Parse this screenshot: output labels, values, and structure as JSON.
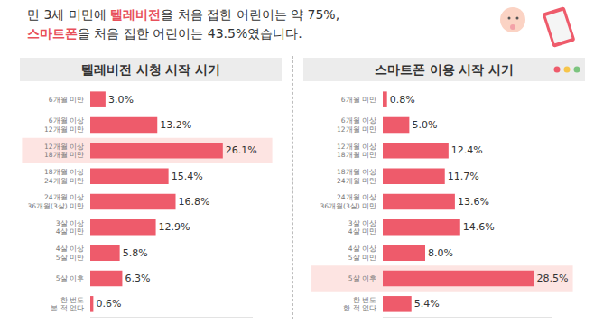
{
  "header": {
    "lines": [
      [
        {
          "text": "만 3세 미만에 "
        },
        {
          "text": "텔레비전",
          "color": "#e8505b"
        },
        {
          "text": "을 처음 접한 어린이는 약 75%,"
        }
      ],
      [
        {
          "text": "스마트폰",
          "color": "#e8505b"
        },
        {
          "text": "을 처음 접한 어린이는 43.5%였습니다."
        }
      ]
    ]
  },
  "chart_data": [
    {
      "type": "bar",
      "orientation": "horizontal",
      "title": "텔레비전 시청 시작 시기",
      "categories": [
        "6개월 미만",
        "6개월 이상\n12개월 미만",
        "12개월 이상\n18개월 미만",
        "18개월 이상\n24개월 미만",
        "24개월 이상\n36개월(3살) 미만",
        "3살 이상\n4살 미만",
        "4살 이상\n5살 미만",
        "5살 이후",
        "한 번도\n본 적 없다"
      ],
      "values": [
        3.0,
        13.2,
        26.1,
        15.4,
        16.8,
        12.9,
        5.8,
        6.3,
        0.6
      ],
      "value_labels": [
        "3.0%",
        "13.2%",
        "26.1%",
        "15.4%",
        "16.8%",
        "12.9%",
        "5.8%",
        "6.3%",
        "0.6%"
      ],
      "color": "#ee5b6b",
      "xlim": [
        0,
        32
      ],
      "xticks": [],
      "data_labels": true,
      "tick_labels": "y",
      "grid": false
    },
    {
      "type": "bar",
      "orientation": "horizontal",
      "title": "스마트폰 이용 시작 시기",
      "categories": [
        "6개월 미만",
        "6개월 이상\n12개월 미만",
        "12개월 이상\n18개월 미만",
        "18개월 이상\n24개월 미만",
        "24개월 이상\n36개월(3살) 미만",
        "3살 이상\n4살 미만",
        "4살 이상\n5살 미만",
        "5살 이후",
        "한 번도\n한 적 없다"
      ],
      "values": [
        0.8,
        5.0,
        12.4,
        11.7,
        13.6,
        14.6,
        8.0,
        28.5,
        5.4
      ],
      "value_labels": [
        "0.8%",
        "5.0%",
        "12.4%",
        "11.7%",
        "13.6%",
        "14.6%",
        "8.0%",
        "28.5%",
        "5.4%"
      ],
      "color": "#ee5b6b",
      "xlim": [
        0,
        32
      ],
      "xticks": [],
      "data_labels": true,
      "tick_labels": "y",
      "grid": false
    }
  ]
}
